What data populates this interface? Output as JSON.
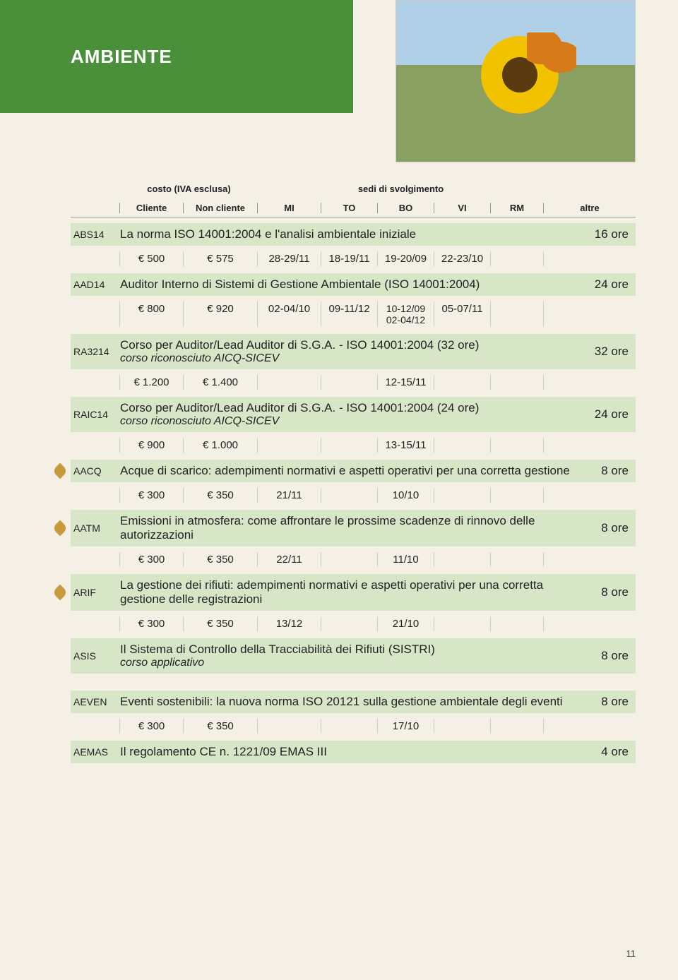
{
  "header_title": "AMBIENTE",
  "labels": {
    "costo": "costo (IVA esclusa)",
    "sedi": "sedi di svolgimento",
    "cliente": "Cliente",
    "noncliente": "Non cliente",
    "mi": "MI",
    "to": "TO",
    "bo": "BO",
    "vi": "VI",
    "rm": "RM",
    "altre": "altre"
  },
  "rows": [
    {
      "code": "ABS14",
      "title": "La norma ISO 14001:2004 e l'analisi ambientale iniziale",
      "ore": "16 ore",
      "data": {
        "cliente": "€ 500",
        "noncli": "€ 575",
        "mi": "28-29/11",
        "to": "18-19/11",
        "bo": "19-20/09",
        "vi": "22-23/10"
      }
    },
    {
      "code": "AAD14",
      "title": "Auditor Interno di Sistemi di Gestione Ambientale (ISO 14001:2004)",
      "ore": "24 ore",
      "data": {
        "cliente": "€ 800",
        "noncli": "€ 920",
        "mi": "02-04/10",
        "to": "09-11/12",
        "bo": "10-12/09\n02-04/12",
        "vi": "05-07/11"
      }
    },
    {
      "code": "RA3214",
      "title": "Corso per Auditor/Lead Auditor di S.G.A. - ISO 14001:2004 (32 ore)",
      "sub": "corso riconosciuto AICQ-SICEV",
      "ore": "32 ore",
      "data": {
        "cliente": "€ 1.200",
        "noncli": "€ 1.400",
        "bo": "12-15/11"
      }
    },
    {
      "code": "RAIC14",
      "title": "Corso per Auditor/Lead Auditor di S.G.A. - ISO 14001:2004 (24 ore)",
      "sub": "corso riconosciuto AICQ-SICEV",
      "ore": "24 ore",
      "data": {
        "cliente": "€ 900",
        "noncli": "€ 1.000",
        "bo": "13-15/11"
      }
    },
    {
      "code": "AACQ",
      "leaf": true,
      "title": "Acque di scarico: adempimenti normativi e aspetti operativi per una corretta gestione",
      "ore": "8 ore",
      "data": {
        "cliente": "€ 300",
        "noncli": "€ 350",
        "mi": "21/11",
        "bo": "10/10"
      }
    },
    {
      "code": "AATM",
      "leaf": true,
      "title": "Emissioni in atmosfera: come affrontare le prossime scadenze di rinnovo delle autorizzazioni",
      "ore": "8 ore",
      "data": {
        "cliente": "€ 300",
        "noncli": "€ 350",
        "mi": "22/11",
        "bo": "11/10"
      }
    },
    {
      "code": "ARIF",
      "leaf": true,
      "title": "La gestione dei rifiuti: adempimenti normativi e aspetti operativi per una corretta gestione delle registrazioni",
      "ore": "8 ore",
      "data": {
        "cliente": "€ 300",
        "noncli": "€ 350",
        "mi": "13/12",
        "bo": "21/10"
      }
    },
    {
      "code": "ASIS",
      "title": "Il Sistema di Controllo della Tracciabilità dei Rifiuti (SISTRI)",
      "sub": "corso applicativo",
      "ore": "8 ore"
    },
    {
      "gap": true
    },
    {
      "code": "AEVEN",
      "title": "Eventi sostenibili: la nuova norma ISO 20121 sulla gestione ambientale degli eventi",
      "ore": "8 ore",
      "data": {
        "cliente": "€ 300",
        "noncli": "€ 350",
        "bo": "17/10"
      }
    },
    {
      "code": "AEMAS",
      "title": "Il regolamento CE n. 1221/09 EMAS III",
      "ore": "4 ore"
    }
  ],
  "pagenum": "11"
}
